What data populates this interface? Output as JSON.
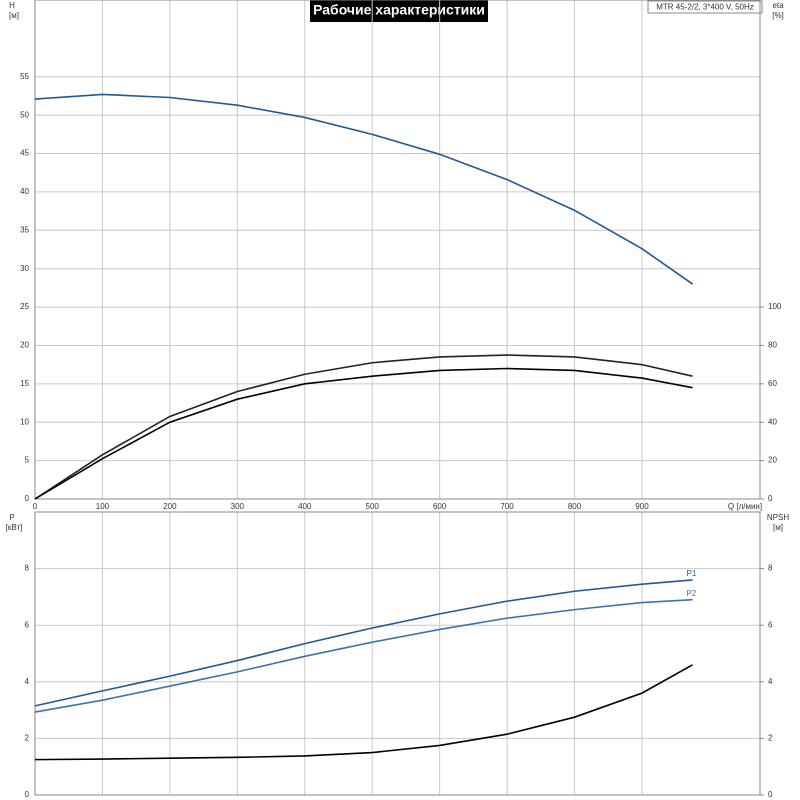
{
  "title": "Рабочие характеристики",
  "info": "MTR 45-2/2, 3*400 V, 50Hz",
  "chart_data": [
    {
      "type": "line",
      "y_label": "H",
      "y_unit": "[м]",
      "y2_label": "eta",
      "y2_unit": "[%]",
      "x_label": "Q [л/мин]",
      "x": [
        0,
        100,
        200,
        300,
        400,
        500,
        600,
        700,
        800,
        900,
        975
      ],
      "xlim": [
        0,
        1075
      ],
      "xticks": [
        0,
        100,
        200,
        300,
        400,
        500,
        600,
        700,
        800,
        900
      ],
      "ylim": [
        0,
        65
      ],
      "yticks": [
        0,
        5,
        10,
        15,
        20,
        25,
        30,
        35,
        40,
        45,
        50,
        55
      ],
      "y2lim": [
        0,
        260
      ],
      "y2ticks": [
        0,
        20,
        40,
        60,
        80,
        100
      ],
      "grid": true,
      "series": [
        {
          "color": "#1f5a96",
          "values": [
            52.1,
            52.7,
            52.3,
            51.3,
            49.7,
            47.5,
            44.9,
            41.6,
            37.6,
            32.6,
            28
          ]
        },
        {
          "color": "#222222",
          "axis": "y2",
          "values": [
            0,
            23,
            43,
            56,
            65,
            71,
            74,
            75,
            74,
            70,
            64
          ]
        },
        {
          "color": "#000000",
          "axis": "y2",
          "values": [
            0,
            21,
            40,
            52,
            60,
            64,
            67,
            68,
            67,
            63,
            58
          ]
        }
      ]
    },
    {
      "type": "line",
      "y_label": "P",
      "y_unit": "[кВт]",
      "y2_label": "NPSH",
      "y2_unit": "[м]",
      "x": [
        0,
        100,
        200,
        300,
        400,
        500,
        600,
        700,
        800,
        900,
        975
      ],
      "xlim": [
        0,
        1075
      ],
      "ylim": [
        0,
        10
      ],
      "yticks": [
        0,
        2,
        4,
        6,
        8
      ],
      "y2lim": [
        0,
        10
      ],
      "y2ticks": [
        0,
        2,
        4,
        6,
        8
      ],
      "grid": true,
      "series": [
        {
          "name": "P1",
          "color": "#1f5a96",
          "values": [
            3.15,
            3.68,
            4.2,
            4.75,
            5.35,
            5.9,
            6.4,
            6.85,
            7.2,
            7.45,
            7.6
          ]
        },
        {
          "name": "P2",
          "color": "#3a74b0",
          "values": [
            2.93,
            3.35,
            3.85,
            4.35,
            4.9,
            5.4,
            5.85,
            6.25,
            6.55,
            6.8,
            6.9
          ]
        },
        {
          "color": "#000000",
          "axis": "y2",
          "values": [
            1.25,
            1.27,
            1.3,
            1.33,
            1.38,
            1.5,
            1.75,
            2.15,
            2.75,
            3.6,
            4.6
          ]
        }
      ]
    }
  ]
}
